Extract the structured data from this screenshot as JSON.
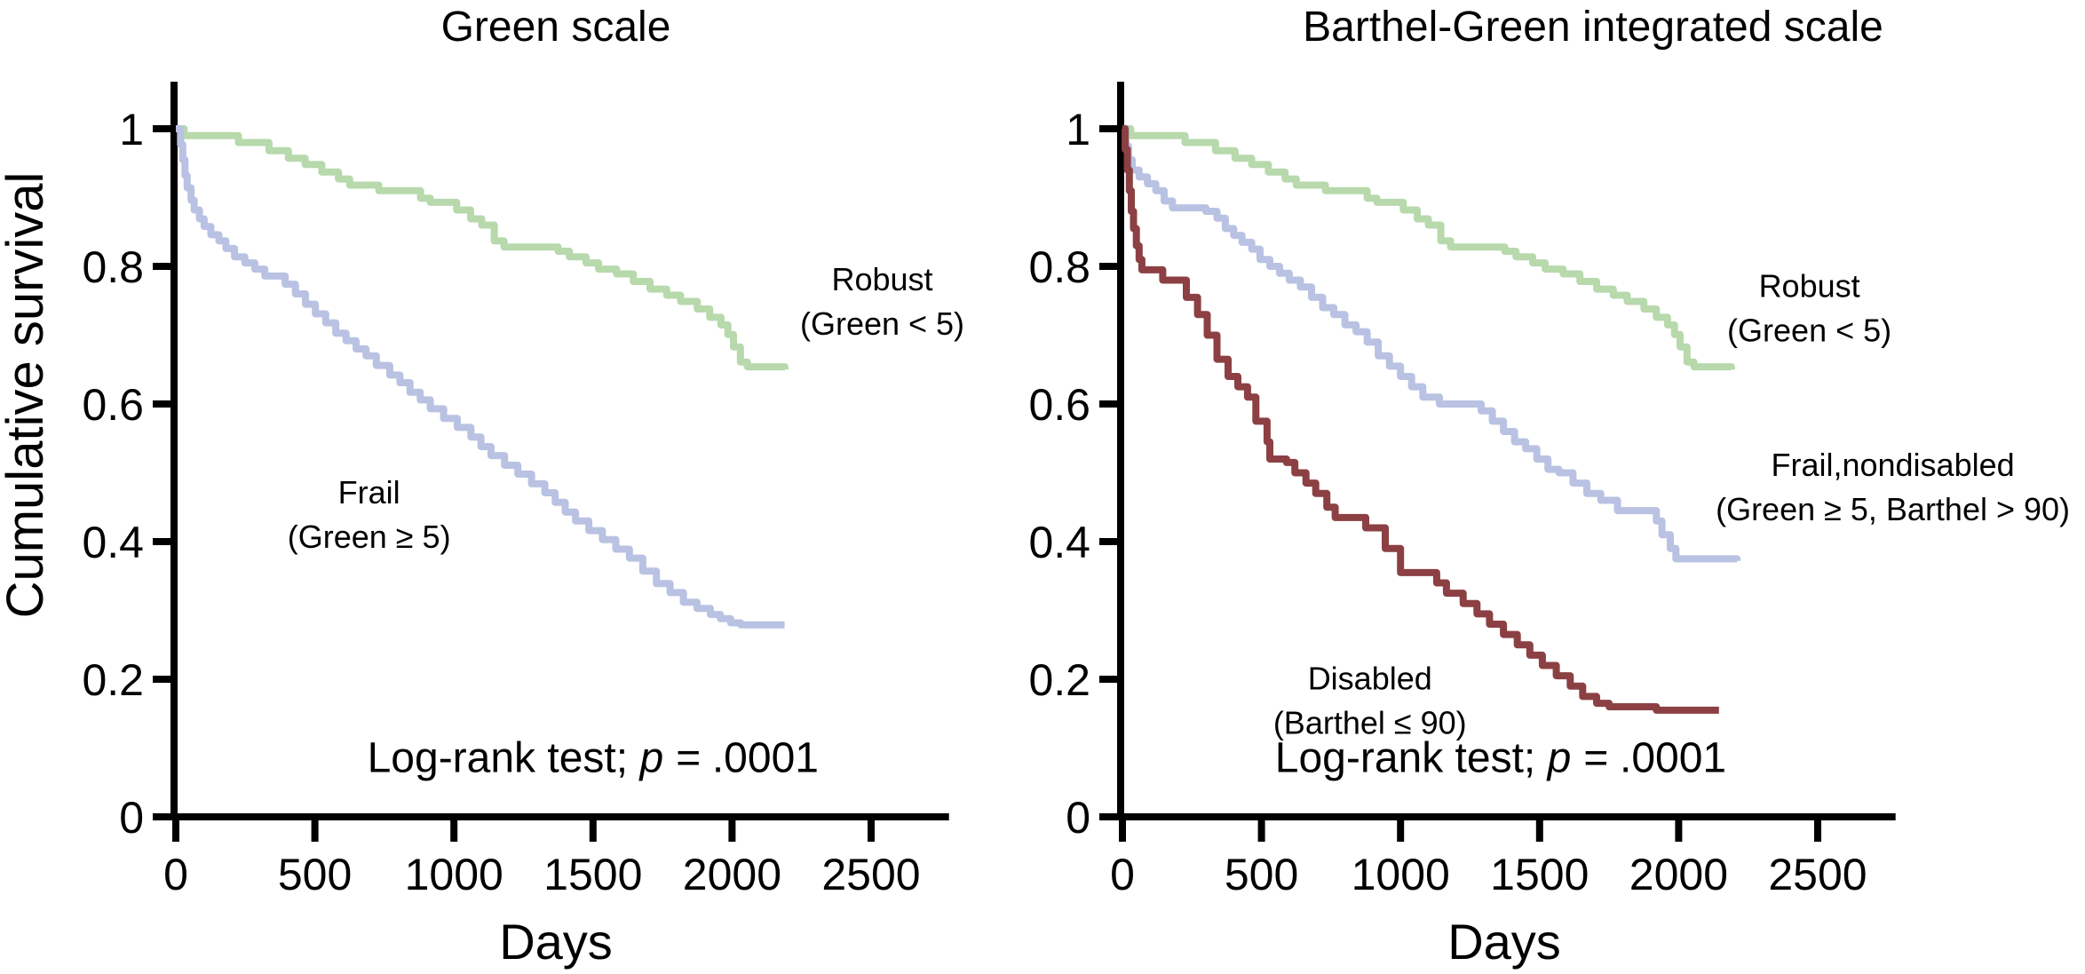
{
  "figure": {
    "ylabel": "Cumulative survival",
    "xlabel": "Days"
  },
  "chart_data": [
    {
      "type": "line",
      "subtype": "kaplan-meier-step",
      "title": "Green scale",
      "xlabel": "Days",
      "ylabel": "Cumulative survival",
      "xlim": [
        0,
        2780
      ],
      "ylim": [
        0,
        1.08
      ],
      "xticks": [
        0,
        500,
        1000,
        1500,
        2000,
        2500
      ],
      "yticks": [
        0,
        0.2,
        0.4,
        0.6,
        0.8,
        1
      ],
      "grid": false,
      "legend_position": "inline-annotations",
      "annotations": [
        {
          "lines": [
            "Robust",
            "(Green < 5)"
          ],
          "x": 2540,
          "y": 0.75
        },
        {
          "lines": [
            "Frail",
            "(Green ≥ 5)"
          ],
          "x": 695,
          "y": 0.44
        }
      ],
      "stat_note": {
        "pre": "Log-rank test; ",
        "italic": "p = ",
        "post": ".0001",
        "x": 1500,
        "y": 0.065
      },
      "series": [
        {
          "name": "Robust (Green < 5)",
          "color": "#b7d9ac",
          "points": [
            [
              0,
              1.0
            ],
            [
              30,
              0.99
            ],
            [
              225,
              0.98
            ],
            [
              335,
              0.968
            ],
            [
              405,
              0.957
            ],
            [
              465,
              0.948
            ],
            [
              525,
              0.937
            ],
            [
              585,
              0.927
            ],
            [
              625,
              0.918
            ],
            [
              730,
              0.91
            ],
            [
              880,
              0.899
            ],
            [
              915,
              0.893
            ],
            [
              1010,
              0.882
            ],
            [
              1060,
              0.869
            ],
            [
              1100,
              0.86
            ],
            [
              1145,
              0.837
            ],
            [
              1180,
              0.828
            ],
            [
              1375,
              0.822
            ],
            [
              1415,
              0.814
            ],
            [
              1475,
              0.805
            ],
            [
              1520,
              0.796
            ],
            [
              1585,
              0.789
            ],
            [
              1645,
              0.778
            ],
            [
              1705,
              0.767
            ],
            [
              1765,
              0.758
            ],
            [
              1815,
              0.749
            ],
            [
              1875,
              0.738
            ],
            [
              1920,
              0.726
            ],
            [
              1960,
              0.715
            ],
            [
              1985,
              0.701
            ],
            [
              2005,
              0.683
            ],
            [
              2030,
              0.661
            ],
            [
              2055,
              0.654
            ],
            [
              2190,
              0.65
            ]
          ]
        },
        {
          "name": "Frail (Green ≥ 5)",
          "color": "#b9c2e2",
          "points": [
            [
              0,
              1.0
            ],
            [
              17,
              0.977
            ],
            [
              25,
              0.955
            ],
            [
              33,
              0.932
            ],
            [
              41,
              0.914
            ],
            [
              55,
              0.896
            ],
            [
              66,
              0.882
            ],
            [
              85,
              0.869
            ],
            [
              102,
              0.858
            ],
            [
              126,
              0.846
            ],
            [
              155,
              0.837
            ],
            [
              180,
              0.826
            ],
            [
              211,
              0.814
            ],
            [
              248,
              0.805
            ],
            [
              284,
              0.796
            ],
            [
              320,
              0.786
            ],
            [
              393,
              0.774
            ],
            [
              430,
              0.76
            ],
            [
              466,
              0.745
            ],
            [
              502,
              0.731
            ],
            [
              539,
              0.718
            ],
            [
              575,
              0.703
            ],
            [
              612,
              0.692
            ],
            [
              648,
              0.68
            ],
            [
              684,
              0.67
            ],
            [
              721,
              0.656
            ],
            [
              769,
              0.642
            ],
            [
              806,
              0.631
            ],
            [
              842,
              0.617
            ],
            [
              879,
              0.606
            ],
            [
              915,
              0.593
            ],
            [
              963,
              0.579
            ],
            [
              1012,
              0.566
            ],
            [
              1061,
              0.552
            ],
            [
              1097,
              0.538
            ],
            [
              1133,
              0.525
            ],
            [
              1182,
              0.511
            ],
            [
              1230,
              0.498
            ],
            [
              1279,
              0.484
            ],
            [
              1327,
              0.471
            ],
            [
              1364,
              0.457
            ],
            [
              1400,
              0.443
            ],
            [
              1437,
              0.43
            ],
            [
              1485,
              0.416
            ],
            [
              1534,
              0.403
            ],
            [
              1582,
              0.389
            ],
            [
              1631,
              0.376
            ],
            [
              1679,
              0.357
            ],
            [
              1728,
              0.339
            ],
            [
              1777,
              0.326
            ],
            [
              1825,
              0.312
            ],
            [
              1874,
              0.303
            ],
            [
              1922,
              0.294
            ],
            [
              1958,
              0.288
            ],
            [
              1995,
              0.282
            ],
            [
              2031,
              0.279
            ],
            [
              2189,
              0.279
            ]
          ]
        }
      ]
    },
    {
      "type": "line",
      "subtype": "kaplan-meier-step",
      "title": "Barthel-Green integrated scale",
      "xlabel": "Days",
      "ylabel": "",
      "xlim": [
        0,
        2780
      ],
      "ylim": [
        0,
        1.08
      ],
      "xticks": [
        0,
        500,
        1000,
        1500,
        2000,
        2500
      ],
      "yticks": [
        0,
        0.2,
        0.4,
        0.6,
        0.8,
        1
      ],
      "grid": false,
      "legend_position": "inline-annotations",
      "annotations": [
        {
          "lines": [
            "Robust",
            "(Green < 5)"
          ],
          "x": 2470,
          "y": 0.74
        },
        {
          "lines": [
            "Frail,nondisabled",
            "(Green ≥ 5, Barthel > 90)"
          ],
          "x": 2770,
          "y": 0.48
        },
        {
          "lines": [
            "Disabled",
            "(Barthel ≤ 90)"
          ],
          "x": 890,
          "y": 0.17
        }
      ],
      "stat_note": {
        "pre": "Log-rank test; ",
        "italic": "p = ",
        "post": ".0001",
        "x": 1360,
        "y": 0.065
      },
      "series": [
        {
          "name": "Robust (Green < 5)",
          "color": "#b7d9ac",
          "points": [
            [
              0,
              1.0
            ],
            [
              30,
              0.99
            ],
            [
              225,
              0.98
            ],
            [
              335,
              0.968
            ],
            [
              405,
              0.957
            ],
            [
              465,
              0.948
            ],
            [
              525,
              0.937
            ],
            [
              585,
              0.927
            ],
            [
              625,
              0.918
            ],
            [
              730,
              0.91
            ],
            [
              880,
              0.899
            ],
            [
              915,
              0.893
            ],
            [
              1010,
              0.882
            ],
            [
              1060,
              0.869
            ],
            [
              1100,
              0.86
            ],
            [
              1145,
              0.837
            ],
            [
              1180,
              0.828
            ],
            [
              1375,
              0.822
            ],
            [
              1415,
              0.814
            ],
            [
              1475,
              0.805
            ],
            [
              1520,
              0.796
            ],
            [
              1585,
              0.789
            ],
            [
              1645,
              0.778
            ],
            [
              1705,
              0.767
            ],
            [
              1765,
              0.758
            ],
            [
              1815,
              0.749
            ],
            [
              1875,
              0.738
            ],
            [
              1920,
              0.726
            ],
            [
              1960,
              0.715
            ],
            [
              1985,
              0.701
            ],
            [
              2005,
              0.683
            ],
            [
              2030,
              0.661
            ],
            [
              2055,
              0.654
            ],
            [
              2190,
              0.65
            ]
          ]
        },
        {
          "name": "Frail,nondisabled (Green ≥ 5, Barthel > 90)",
          "color": "#b9c2e2",
          "points": [
            [
              0,
              1.0
            ],
            [
              12,
              0.975
            ],
            [
              22,
              0.955
            ],
            [
              35,
              0.94
            ],
            [
              60,
              0.93
            ],
            [
              90,
              0.92
            ],
            [
              120,
              0.91
            ],
            [
              150,
              0.895
            ],
            [
              180,
              0.885
            ],
            [
              300,
              0.88
            ],
            [
              340,
              0.87
            ],
            [
              370,
              0.855
            ],
            [
              400,
              0.845
            ],
            [
              430,
              0.835
            ],
            [
              465,
              0.825
            ],
            [
              495,
              0.81
            ],
            [
              530,
              0.8
            ],
            [
              565,
              0.79
            ],
            [
              600,
              0.78
            ],
            [
              640,
              0.77
            ],
            [
              680,
              0.755
            ],
            [
              720,
              0.74
            ],
            [
              760,
              0.73
            ],
            [
              800,
              0.715
            ],
            [
              840,
              0.705
            ],
            [
              880,
              0.69
            ],
            [
              920,
              0.67
            ],
            [
              960,
              0.655
            ],
            [
              1000,
              0.64
            ],
            [
              1040,
              0.625
            ],
            [
              1080,
              0.61
            ],
            [
              1140,
              0.6
            ],
            [
              1290,
              0.59
            ],
            [
              1330,
              0.575
            ],
            [
              1370,
              0.56
            ],
            [
              1410,
              0.545
            ],
            [
              1450,
              0.535
            ],
            [
              1490,
              0.52
            ],
            [
              1530,
              0.505
            ],
            [
              1570,
              0.5
            ],
            [
              1620,
              0.485
            ],
            [
              1670,
              0.47
            ],
            [
              1720,
              0.46
            ],
            [
              1780,
              0.445
            ],
            [
              1920,
              0.43
            ],
            [
              1940,
              0.41
            ],
            [
              1970,
              0.39
            ],
            [
              1990,
              0.375
            ],
            [
              2210,
              0.372
            ]
          ]
        },
        {
          "name": "Disabled (Barthel ≤ 90)",
          "color": "#8c4043",
          "points": [
            [
              0,
              1.0
            ],
            [
              10,
              0.97
            ],
            [
              18,
              0.94
            ],
            [
              25,
              0.91
            ],
            [
              32,
              0.88
            ],
            [
              40,
              0.855
            ],
            [
              50,
              0.83
            ],
            [
              60,
              0.81
            ],
            [
              70,
              0.795
            ],
            [
              145,
              0.78
            ],
            [
              230,
              0.755
            ],
            [
              270,
              0.73
            ],
            [
              305,
              0.7
            ],
            [
              340,
              0.665
            ],
            [
              380,
              0.64
            ],
            [
              415,
              0.625
            ],
            [
              450,
              0.61
            ],
            [
              480,
              0.575
            ],
            [
              520,
              0.545
            ],
            [
              530,
              0.52
            ],
            [
              590,
              0.515
            ],
            [
              620,
              0.5
            ],
            [
              660,
              0.485
            ],
            [
              695,
              0.47
            ],
            [
              735,
              0.45
            ],
            [
              765,
              0.435
            ],
            [
              875,
              0.42
            ],
            [
              945,
              0.39
            ],
            [
              1000,
              0.355
            ],
            [
              1130,
              0.34
            ],
            [
              1165,
              0.325
            ],
            [
              1225,
              0.31
            ],
            [
              1275,
              0.295
            ],
            [
              1320,
              0.28
            ],
            [
              1370,
              0.265
            ],
            [
              1420,
              0.25
            ],
            [
              1465,
              0.235
            ],
            [
              1510,
              0.22
            ],
            [
              1560,
              0.205
            ],
            [
              1610,
              0.19
            ],
            [
              1655,
              0.175
            ],
            [
              1705,
              0.165
            ],
            [
              1750,
              0.16
            ],
            [
              1920,
              0.155
            ],
            [
              2145,
              0.155
            ]
          ]
        }
      ]
    }
  ]
}
